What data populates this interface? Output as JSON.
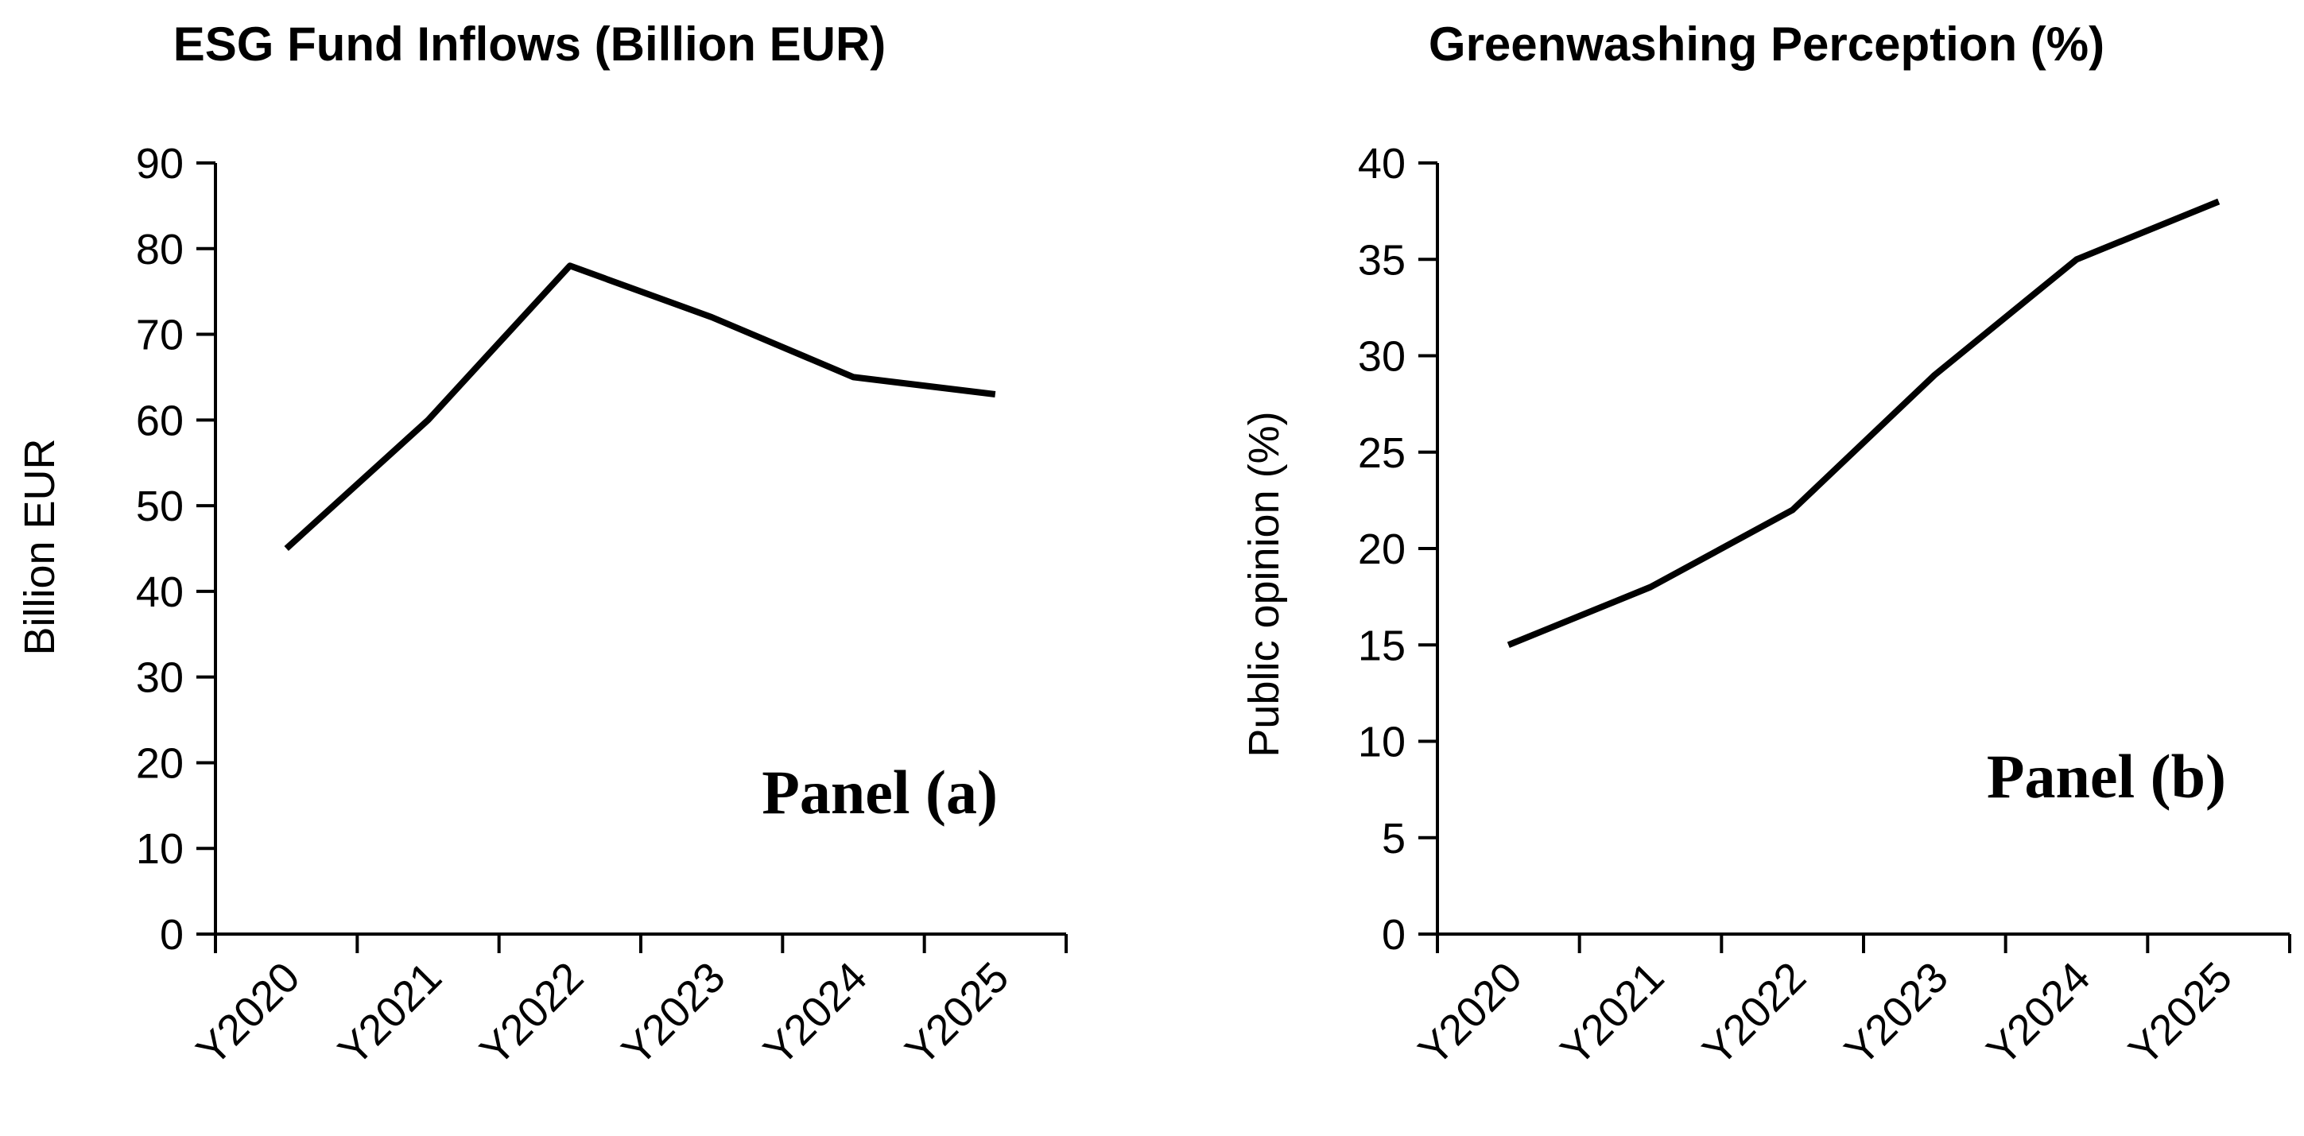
{
  "chart_data": [
    {
      "type": "line",
      "title": "ESG Fund Inflows (Billion EUR)",
      "xlabel": "",
      "ylabel": "Billion EUR",
      "categories": [
        "Y2020",
        "Y2021",
        "Y2022",
        "Y2023",
        "Y2024",
        "Y2025"
      ],
      "series": [
        {
          "name": "ESG Fund Inflows",
          "values": [
            45,
            60,
            78,
            72,
            65,
            63
          ]
        }
      ],
      "ylim": [
        0,
        90
      ],
      "yticks": [
        0,
        10,
        20,
        30,
        40,
        50,
        60,
        70,
        80,
        90
      ],
      "annotation": "Panel (a)",
      "grid": false,
      "line_color": "#000000"
    },
    {
      "type": "line",
      "title": "Greenwashing Perception (%)",
      "xlabel": "",
      "ylabel": "Public opinion (%)",
      "categories": [
        "Y2020",
        "Y2021",
        "Y2022",
        "Y2023",
        "Y2024",
        "Y2025"
      ],
      "series": [
        {
          "name": "Greenwashing Perception",
          "values": [
            15,
            18,
            22,
            29,
            35,
            38
          ]
        }
      ],
      "ylim": [
        0,
        40
      ],
      "yticks": [
        0,
        5,
        10,
        15,
        20,
        25,
        30,
        35,
        40
      ],
      "annotation": "Panel (b)",
      "grid": false,
      "line_color": "#000000"
    }
  ]
}
